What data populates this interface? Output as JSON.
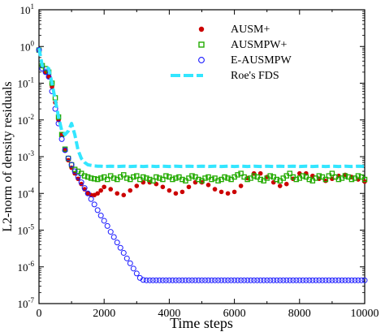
{
  "chart_data": {
    "type": "scatter",
    "title": "",
    "xlabel": "Time steps",
    "ylabel": "L2-norm of density residuals",
    "xlim": [
      0,
      10000
    ],
    "ylim_log10": [
      -7,
      1
    ],
    "y_scale": "log",
    "grid": false,
    "legend_position": "top-right",
    "x_ticks": [
      "0",
      "2000",
      "4000",
      "6000",
      "8000",
      "10000"
    ],
    "y_ticks": [
      {
        "base": "10",
        "exp": "1"
      },
      {
        "base": "10",
        "exp": "0"
      },
      {
        "base": "10",
        "exp": "-1"
      },
      {
        "base": "10",
        "exp": "-2"
      },
      {
        "base": "10",
        "exp": "-3"
      },
      {
        "base": "10",
        "exp": "-4"
      },
      {
        "base": "10",
        "exp": "-5"
      },
      {
        "base": "10",
        "exp": "-6"
      },
      {
        "base": "10",
        "exp": "-7"
      }
    ],
    "series": [
      {
        "name": "AUSM+",
        "marker": "filled-circle",
        "color": "#cc0000",
        "x": [
          0,
          100,
          200,
          300,
          400,
          500,
          600,
          700,
          800,
          900,
          1000,
          1100,
          1200,
          1300,
          1400,
          1500,
          1600,
          1700,
          1800,
          1900,
          2000,
          2200,
          2400,
          2600,
          2800,
          3000,
          3200,
          3400,
          3600,
          3800,
          4000,
          4200,
          4400,
          4600,
          4800,
          5000,
          5200,
          5400,
          5600,
          5800,
          6000,
          6200,
          6400,
          6600,
          6800,
          7000,
          7200,
          7400,
          7600,
          7800,
          8000,
          8200,
          8400,
          8600,
          8800,
          9000,
          9200,
          9400,
          9600,
          9800,
          10000
        ],
        "y": [
          0.8,
          0.3,
          0.2,
          0.15,
          0.08,
          0.03,
          0.01,
          0.004,
          0.0015,
          0.0008,
          0.0005,
          0.00035,
          0.00025,
          0.00018,
          0.00013,
          0.0001,
          9e-05,
          9e-05,
          0.0001,
          0.00012,
          0.00015,
          0.00013,
          0.0001,
          9e-05,
          0.00012,
          0.00016,
          0.0002,
          0.0002,
          0.00018,
          0.00015,
          0.00012,
          0.0001,
          0.00011,
          0.00015,
          0.0002,
          0.0002,
          0.00017,
          0.00013,
          0.00011,
          0.0001,
          0.00011,
          0.00016,
          0.00026,
          0.00035,
          0.00035,
          0.00028,
          0.0002,
          0.00016,
          0.00018,
          0.00025,
          0.00035,
          0.00035,
          0.0003,
          0.00025,
          0.00022,
          0.00025,
          0.0003,
          0.00032,
          0.00028,
          0.00024,
          0.00021
        ]
      },
      {
        "name": "AUSMPW+",
        "marker": "open-square",
        "color": "#22aa00",
        "x": [
          0,
          100,
          200,
          300,
          400,
          500,
          600,
          700,
          800,
          900,
          1000,
          1100,
          1200,
          1300,
          1400,
          1500,
          1600,
          1700,
          1800,
          1900,
          2000,
          2100,
          2200,
          2300,
          2400,
          2500,
          2600,
          2700,
          2800,
          2900,
          3000,
          3100,
          3200,
          3300,
          3400,
          3500,
          3600,
          3700,
          3800,
          3900,
          4000,
          4100,
          4200,
          4300,
          4400,
          4500,
          4600,
          4700,
          4800,
          4900,
          5000,
          5100,
          5200,
          5300,
          5400,
          5500,
          5600,
          5700,
          5800,
          5900,
          6000,
          6100,
          6200,
          6300,
          6400,
          6500,
          6600,
          6700,
          6800,
          6900,
          7000,
          7100,
          7200,
          7300,
          7400,
          7500,
          7600,
          7700,
          7800,
          7900,
          8000,
          8100,
          8200,
          8300,
          8400,
          8500,
          8600,
          8700,
          8800,
          8900,
          9000,
          9100,
          9200,
          9300,
          9400,
          9500,
          9600,
          9700,
          9800,
          9900,
          10000
        ],
        "y": [
          0.8,
          0.3,
          0.25,
          0.2,
          0.1,
          0.04,
          0.012,
          0.004,
          0.0016,
          0.0009,
          0.0006,
          0.00045,
          0.0004,
          0.00035,
          0.0003,
          0.00028,
          0.00026,
          0.00025,
          0.00024,
          0.00026,
          0.00028,
          0.00024,
          0.0003,
          0.00026,
          0.00024,
          0.00028,
          0.00032,
          0.00026,
          0.00024,
          0.00028,
          0.0003,
          0.00024,
          0.00028,
          0.00026,
          0.00024,
          0.00022,
          0.00028,
          0.00026,
          0.00024,
          0.0003,
          0.00028,
          0.00024,
          0.00026,
          0.00028,
          0.00024,
          0.00022,
          0.00026,
          0.0003,
          0.00028,
          0.00024,
          0.00022,
          0.00026,
          0.00028,
          0.00024,
          0.00026,
          0.00022,
          0.00024,
          0.00028,
          0.00026,
          0.00024,
          0.00028,
          0.00032,
          0.00035,
          0.00028,
          0.00024,
          0.00026,
          0.0003,
          0.00028,
          0.00024,
          0.00022,
          0.00026,
          0.0003,
          0.00028,
          0.00024,
          0.00022,
          0.00026,
          0.0003,
          0.00035,
          0.00028,
          0.00024,
          0.00026,
          0.0003,
          0.00028,
          0.00024,
          0.00022,
          0.00026,
          0.0003,
          0.00028,
          0.00024,
          0.0003,
          0.00035,
          0.00028,
          0.00024,
          0.00026,
          0.0003,
          0.00028,
          0.00024,
          0.00026,
          0.0003,
          0.00028,
          0.00024
        ]
      },
      {
        "name": "E-AUSMPW",
        "marker": "open-circle",
        "color": "#1a1aff",
        "x": [
          0,
          100,
          200,
          300,
          400,
          500,
          600,
          700,
          800,
          900,
          1000,
          1100,
          1200,
          1300,
          1400,
          1500,
          1600,
          1700,
          1800,
          1900,
          2000,
          2100,
          2200,
          2300,
          2400,
          2500,
          2600,
          2700,
          2800,
          2900,
          3000,
          3100,
          3200,
          3300,
          3400,
          3500,
          3600,
          3700,
          3800,
          3900,
          4000,
          4100,
          4200,
          4300,
          4400,
          4500,
          4600,
          4700,
          4800,
          4900,
          5000,
          5100,
          5200,
          5300,
          5400,
          5500,
          5600,
          5700,
          5800,
          5900,
          6000,
          6100,
          6200,
          6300,
          6400,
          6500,
          6600,
          6700,
          6800,
          6900,
          7000,
          7100,
          7200,
          7300,
          7400,
          7500,
          7600,
          7700,
          7800,
          7900,
          8000,
          8100,
          8200,
          8300,
          8400,
          8500,
          8600,
          8700,
          8800,
          8900,
          9000,
          9100,
          9200,
          9300,
          9400,
          9500,
          9600,
          9700,
          9800,
          9900,
          10000
        ],
        "y": [
          0.8,
          0.25,
          0.2,
          0.15,
          0.06,
          0.02,
          0.008,
          0.003,
          0.0015,
          0.0009,
          0.0006,
          0.0004,
          0.00028,
          0.0002,
          0.00014,
          0.0001,
          7e-05,
          5e-05,
          3.5e-05,
          2.5e-05,
          1.8e-05,
          1.3e-05,
          9e-06,
          6.5e-06,
          4.6e-06,
          3.3e-06,
          2.4e-06,
          1.7e-06,
          1.25e-06,
          9e-07,
          6.6e-07,
          5e-07,
          4.4e-07,
          4.3e-07,
          4.3e-07,
          4.3e-07,
          4.3e-07,
          4.3e-07,
          4.3e-07,
          4.3e-07,
          4.3e-07,
          4.3e-07,
          4.3e-07,
          4.3e-07,
          4.3e-07,
          4.3e-07,
          4.3e-07,
          4.3e-07,
          4.3e-07,
          4.3e-07,
          4.3e-07,
          4.3e-07,
          4.3e-07,
          4.3e-07,
          4.3e-07,
          4.3e-07,
          4.3e-07,
          4.3e-07,
          4.3e-07,
          4.3e-07,
          4.3e-07,
          4.3e-07,
          4.3e-07,
          4.3e-07,
          4.3e-07,
          4.3e-07,
          4.3e-07,
          4.3e-07,
          4.3e-07,
          4.3e-07,
          4.3e-07,
          4.3e-07,
          4.3e-07,
          4.3e-07,
          4.3e-07,
          4.3e-07,
          4.3e-07,
          4.3e-07,
          4.3e-07,
          4.3e-07,
          4.3e-07,
          4.3e-07,
          4.3e-07,
          4.3e-07,
          4.3e-07,
          4.3e-07,
          4.3e-07,
          4.3e-07,
          4.3e-07,
          4.3e-07,
          4.3e-07,
          4.3e-07,
          4.3e-07,
          4.3e-07,
          4.3e-07,
          4.3e-07,
          4.3e-07,
          4.3e-07,
          4.3e-07,
          4.3e-07,
          4.3e-07
        ]
      },
      {
        "name": "Roe's FDS",
        "marker": "dashed-line",
        "color": "#33e6ff",
        "x": [
          0,
          100,
          200,
          300,
          400,
          500,
          600,
          700,
          800,
          900,
          1000,
          1100,
          1200,
          1300,
          1400,
          1500,
          1600,
          1700,
          1800,
          1900,
          2000,
          2200,
          2400,
          2600,
          2800,
          3000,
          3200,
          3400,
          3600,
          3800,
          4000,
          4200,
          4400,
          4600,
          4800,
          5000,
          5200,
          5400,
          5600,
          5800,
          6000,
          6200,
          6400,
          6600,
          6800,
          7000,
          7200,
          7400,
          7600,
          7800,
          8000,
          8200,
          8400,
          8600,
          8800,
          9000,
          9200,
          9400,
          9600,
          9800,
          10000
        ],
        "y": [
          0.9,
          0.3,
          0.28,
          0.25,
          0.1,
          0.035,
          0.012,
          0.005,
          0.004,
          0.005,
          0.008,
          0.004,
          0.0015,
          0.0009,
          0.0007,
          0.0006,
          0.00058,
          0.00056,
          0.00055,
          0.00055,
          0.00054,
          0.00055,
          0.00054,
          0.00055,
          0.00054,
          0.00055,
          0.00054,
          0.00055,
          0.00054,
          0.00055,
          0.00054,
          0.00055,
          0.00054,
          0.00055,
          0.00054,
          0.00055,
          0.00054,
          0.00055,
          0.00054,
          0.00055,
          0.00054,
          0.00055,
          0.00054,
          0.00055,
          0.00054,
          0.00055,
          0.00054,
          0.00055,
          0.00054,
          0.00055,
          0.00054,
          0.00055,
          0.00054,
          0.00055,
          0.00054,
          0.00055,
          0.00054,
          0.00055,
          0.00054,
          0.00055,
          0.00054
        ]
      }
    ]
  }
}
